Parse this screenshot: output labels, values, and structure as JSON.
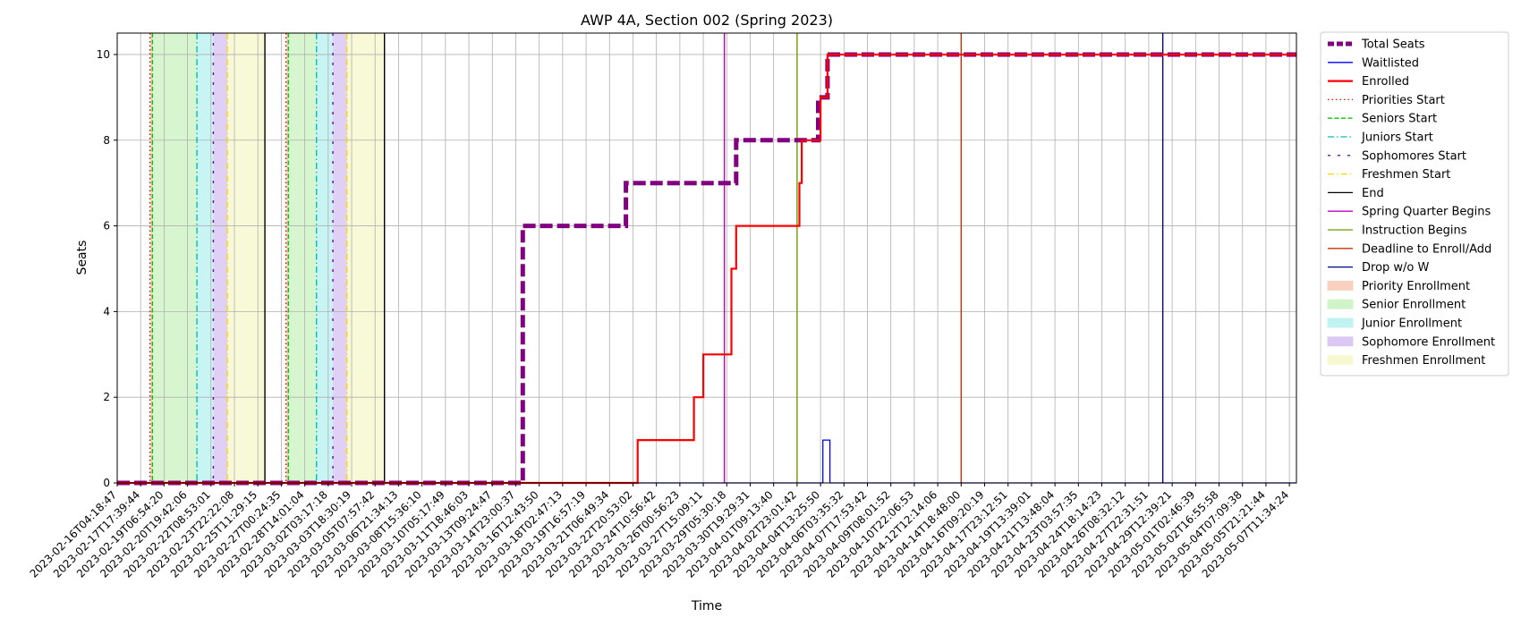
{
  "chart_data": {
    "type": "line",
    "title": "AWP 4A, Section 002 (Spring 2023)",
    "xlabel": "Time",
    "ylabel": "Seats",
    "ylim": [
      0,
      10.5
    ],
    "yticks": [
      0,
      2,
      4,
      6,
      8,
      10
    ],
    "grid": true,
    "legend_placement": "outside-right",
    "x_categories": [
      "2023-02-16T04:18:47",
      "2023-02-17T17:39:44",
      "2023-02-19T06:54:20",
      "2023-02-20T19:42:06",
      "2023-02-22T08:53:01",
      "2023-02-23T22:22:08",
      "2023-02-25T11:29:15",
      "2023-02-27T00:24:35",
      "2023-02-28T14:01:04",
      "2023-03-02T03:17:18",
      "2023-03-03T18:30:19",
      "2023-03-05T07:57:42",
      "2023-03-06T21:34:13",
      "2023-03-08T15:36:10",
      "2023-03-10T05:17:49",
      "2023-03-11T18:46:03",
      "2023-03-13T09:24:47",
      "2023-03-14T23:00:37",
      "2023-03-16T12:43:50",
      "2023-03-18T02:47:13",
      "2023-03-19T16:57:19",
      "2023-03-21T06:49:34",
      "2023-03-22T20:53:02",
      "2023-03-24T10:56:42",
      "2023-03-26T00:56:23",
      "2023-03-27T15:09:11",
      "2023-03-29T05:30:18",
      "2023-03-30T19:29:31",
      "2023-04-01T09:13:40",
      "2023-04-02T23:01:42",
      "2023-04-04T13:25:50",
      "2023-04-06T03:35:32",
      "2023-04-07T17:53:42",
      "2023-04-09T08:01:52",
      "2023-04-10T22:06:53",
      "2023-04-12T12:14:06",
      "2023-04-14T18:48:00",
      "2023-04-16T09:20:19",
      "2023-04-17T23:12:51",
      "2023-04-19T13:39:01",
      "2023-04-21T13:48:04",
      "2023-04-23T03:57:35",
      "2023-04-24T18:14:23",
      "2023-04-26T08:32:12",
      "2023-04-27T22:31:51",
      "2023-04-29T12:39:21",
      "2023-05-01T02:46:39",
      "2023-05-02T16:55:58",
      "2023-05-04T07:09:38",
      "2023-05-05T21:21:44",
      "2023-05-07T11:34:24"
    ],
    "x_range": [
      0,
      50.3
    ],
    "series": [
      {
        "name": "Total Seats",
        "color": "#800080",
        "style": "dashed",
        "width": "thick",
        "points": [
          [
            0,
            0
          ],
          [
            17.3,
            0
          ],
          [
            17.3,
            6
          ],
          [
            21.7,
            6
          ],
          [
            21.7,
            7
          ],
          [
            26.4,
            7
          ],
          [
            26.4,
            8
          ],
          [
            29.9,
            8
          ],
          [
            29.9,
            9
          ],
          [
            30.3,
            9
          ],
          [
            30.3,
            10
          ],
          [
            50.3,
            10
          ]
        ]
      },
      {
        "name": "Waitlisted",
        "color": "#0000ff",
        "style": "solid",
        "width": "thin",
        "points": [
          [
            0,
            0
          ],
          [
            30.1,
            0
          ],
          [
            30.1,
            1
          ],
          [
            30.4,
            1
          ],
          [
            30.4,
            0
          ],
          [
            50.3,
            0
          ]
        ]
      },
      {
        "name": "Enrolled",
        "color": "#ff0000",
        "style": "solid",
        "width": "medium",
        "points": [
          [
            0,
            0
          ],
          [
            22.2,
            0
          ],
          [
            22.2,
            1
          ],
          [
            24.6,
            1
          ],
          [
            24.6,
            2
          ],
          [
            25,
            2
          ],
          [
            25,
            3
          ],
          [
            26.2,
            3
          ],
          [
            26.2,
            5
          ],
          [
            26.4,
            5
          ],
          [
            26.4,
            6
          ],
          [
            29.1,
            6
          ],
          [
            29.1,
            7
          ],
          [
            29.2,
            7
          ],
          [
            29.2,
            8
          ],
          [
            30,
            8
          ],
          [
            30,
            9
          ],
          [
            30.3,
            9
          ],
          [
            30.3,
            10
          ],
          [
            50.3,
            10
          ]
        ]
      }
    ],
    "vertical_lines": [
      {
        "name": "Priorities Start",
        "color": "#ff0000",
        "style": "dotted",
        "x": [
          1.4,
          7.2
        ]
      },
      {
        "name": "Seniors Start",
        "color": "#00cc00",
        "style": "dashed",
        "x": [
          1.5,
          7.3
        ]
      },
      {
        "name": "Juniors Start",
        "color": "#00bfbf",
        "style": "dashdot",
        "x": [
          3.4,
          8.5
        ]
      },
      {
        "name": "Sophomores Start",
        "color": "#6a0dad",
        "style": "loose-dashed",
        "x": [
          4.1,
          9.2
        ]
      },
      {
        "name": "Freshmen Start",
        "color": "#ffd700",
        "style": "dashdot",
        "x": [
          4.7,
          9.8
        ]
      },
      {
        "name": "End",
        "color": "#000000",
        "style": "solid",
        "x": [
          6.3,
          11.4
        ]
      },
      {
        "name": "Spring Quarter Begins",
        "color": "#c000c0",
        "style": "solid",
        "x": [
          25.9
        ]
      },
      {
        "name": "Instruction Begins",
        "color": "#6b9e00",
        "style": "solid",
        "x": [
          29
        ]
      },
      {
        "name": "Deadline to Enroll/Add",
        "color": "#cc3300",
        "style": "solid",
        "x": [
          36
        ]
      },
      {
        "name": "Drop w/o W",
        "color": "#00008b",
        "style": "solid",
        "x": [
          44.6
        ]
      }
    ],
    "shaded_periods": [
      {
        "name": "Priority Enrollment",
        "color": "#f8d0c0",
        "ranges": [
          [
            1.4,
            1.5
          ],
          [
            7.2,
            7.3
          ]
        ]
      },
      {
        "name": "Senior Enrollment",
        "color": "#d0f4c8",
        "ranges": [
          [
            1.5,
            3.4
          ],
          [
            7.3,
            8.5
          ]
        ]
      },
      {
        "name": "Junior Enrollment",
        "color": "#c0f2f2",
        "ranges": [
          [
            3.4,
            4.1
          ],
          [
            8.5,
            9.2
          ]
        ]
      },
      {
        "name": "Sophomore Enrollment",
        "color": "#dcc8f4",
        "ranges": [
          [
            4.1,
            4.7
          ],
          [
            9.2,
            9.8
          ]
        ]
      },
      {
        "name": "Freshmen Enrollment",
        "color": "#f6f8d0",
        "ranges": [
          [
            4.7,
            6.3
          ],
          [
            9.8,
            11.4
          ]
        ]
      }
    ],
    "legend": [
      {
        "label": "Total Seats",
        "kind": "line",
        "color": "#800080",
        "style": "dashed",
        "width": "thick"
      },
      {
        "label": "Waitlisted",
        "kind": "line",
        "color": "#0000ff",
        "style": "solid",
        "width": "thin"
      },
      {
        "label": "Enrolled",
        "kind": "line",
        "color": "#ff0000",
        "style": "solid",
        "width": "medium"
      },
      {
        "label": "Priorities Start",
        "kind": "line",
        "color": "#ff0000",
        "style": "dotted",
        "width": "thin"
      },
      {
        "label": "Seniors Start",
        "kind": "line",
        "color": "#00cc00",
        "style": "dashed",
        "width": "thin"
      },
      {
        "label": "Juniors Start",
        "kind": "line",
        "color": "#00bfbf",
        "style": "dashdot",
        "width": "thin"
      },
      {
        "label": "Sophomores Start",
        "kind": "line",
        "color": "#6a0dad",
        "style": "loose-dashed",
        "width": "thin"
      },
      {
        "label": "Freshmen Start",
        "kind": "line",
        "color": "#ffd700",
        "style": "dashdot",
        "width": "thin"
      },
      {
        "label": "End",
        "kind": "line",
        "color": "#000000",
        "style": "solid",
        "width": "thin"
      },
      {
        "label": "Spring Quarter Begins",
        "kind": "line",
        "color": "#c000c0",
        "style": "solid",
        "width": "thin"
      },
      {
        "label": "Instruction Begins",
        "kind": "line",
        "color": "#6b9e00",
        "style": "solid",
        "width": "thin"
      },
      {
        "label": "Deadline to Enroll/Add",
        "kind": "line",
        "color": "#cc3300",
        "style": "solid",
        "width": "thin"
      },
      {
        "label": "Drop w/o W",
        "kind": "line",
        "color": "#00008b",
        "style": "solid",
        "width": "thin"
      },
      {
        "label": "Priority Enrollment",
        "kind": "patch",
        "color": "#f8d0c0"
      },
      {
        "label": "Senior Enrollment",
        "kind": "patch",
        "color": "#d0f4c8"
      },
      {
        "label": "Junior Enrollment",
        "kind": "patch",
        "color": "#c0f2f2"
      },
      {
        "label": "Sophomore Enrollment",
        "kind": "patch",
        "color": "#dcc8f4"
      },
      {
        "label": "Freshmen Enrollment",
        "kind": "patch",
        "color": "#f6f8d0"
      }
    ]
  }
}
